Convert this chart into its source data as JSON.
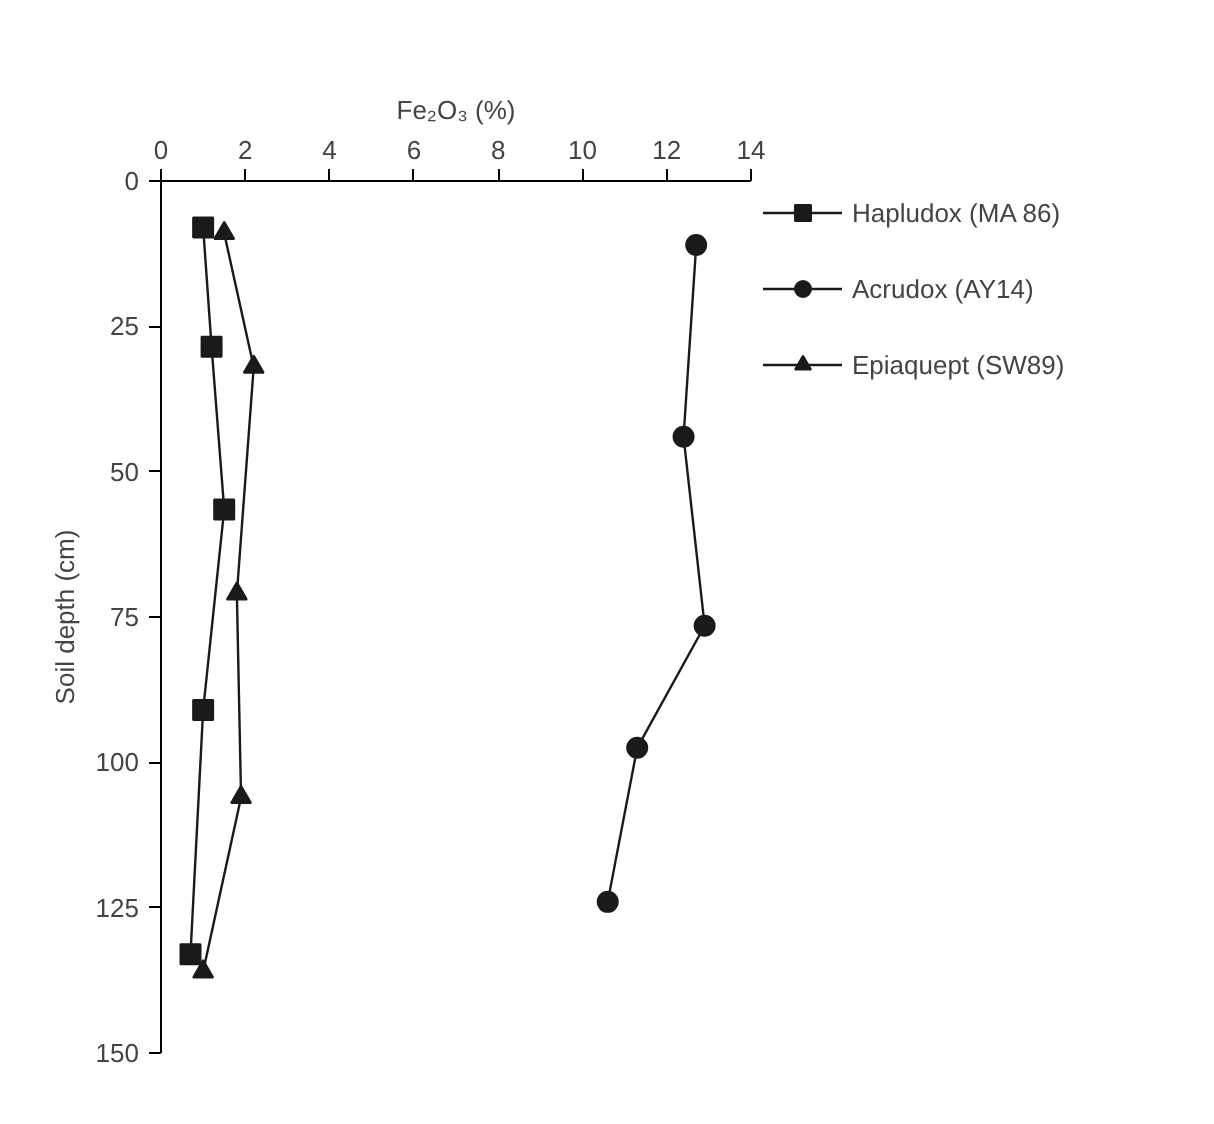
{
  "chart_data": {
    "type": "line",
    "xlabel": "Fe₂O₃ (%)",
    "ylabel": "Soil depth (cm)",
    "xlim": [
      0,
      14
    ],
    "xticks": [
      0,
      2,
      4,
      6,
      8,
      10,
      12,
      14
    ],
    "ylim": [
      150,
      0
    ],
    "yticks": [
      0,
      25,
      50,
      75,
      100,
      125,
      150
    ],
    "grid": false,
    "legend": "right",
    "line_style": "solid",
    "series": [
      {
        "name": "Hapludox (MA 86)",
        "color": "#1a1a1a",
        "marker": "square",
        "x": [
          1.0,
          1.2,
          1.5,
          1.0,
          0.7
        ],
        "values": [
          8,
          28.5,
          56.5,
          91,
          133
        ]
      },
      {
        "name": "Acrudox (AY14)",
        "color": "#1a1a1a",
        "marker": "circle",
        "x": [
          12.7,
          12.4,
          12.9,
          11.3,
          10.6
        ],
        "values": [
          11,
          44,
          76.5,
          97.5,
          124
        ]
      },
      {
        "name": "Epiaquept (SW89)",
        "color": "#1a1a1a",
        "marker": "triangle",
        "x": [
          1.5,
          2.2,
          1.8,
          1.9,
          1.0
        ],
        "values": [
          9,
          32,
          71,
          106,
          136
        ]
      }
    ]
  }
}
